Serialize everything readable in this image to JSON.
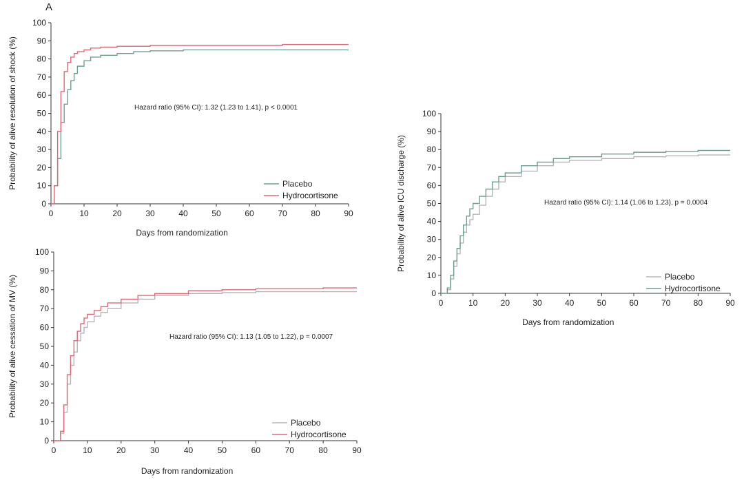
{
  "figure": {
    "panel_letter": "A",
    "colors": {
      "placebo": "#6d9e93",
      "hydrocortisone": "#e06677",
      "axis": "#333333",
      "text": "#222222"
    }
  },
  "chart_data": [
    {
      "id": "shock",
      "type": "line",
      "step": true,
      "title": "",
      "xlabel": "Days from randomization",
      "ylabel": "Probability of alive resolution of shock (%)",
      "xlim": [
        0,
        90
      ],
      "ylim": [
        0,
        100
      ],
      "xticks": [
        0,
        10,
        20,
        30,
        40,
        50,
        60,
        70,
        80,
        90
      ],
      "yticks": [
        0,
        10,
        20,
        30,
        40,
        50,
        60,
        70,
        80,
        90,
        100
      ],
      "grid": false,
      "legend_position": "bottom-right",
      "annotation": "Hazard ratio (95% CI):  1.32  (1.23 to 1.41), p < 0.0001",
      "series": [
        {
          "name": "Placebo",
          "color": "#6d9e93",
          "x": [
            0,
            1,
            2,
            3,
            4,
            5,
            6,
            7,
            8,
            10,
            12,
            15,
            20,
            25,
            30,
            40,
            50,
            60,
            70,
            80,
            90
          ],
          "y": [
            0,
            10,
            25,
            45,
            55,
            63,
            68,
            72,
            76,
            79,
            81,
            82,
            83,
            84,
            84.5,
            85,
            85,
            85,
            85,
            85,
            85
          ]
        },
        {
          "name": "Hydrocortisone",
          "color": "#e06677",
          "x": [
            0,
            1,
            2,
            3,
            4,
            5,
            6,
            7,
            8,
            10,
            12,
            15,
            20,
            25,
            30,
            40,
            50,
            60,
            70,
            80,
            90
          ],
          "y": [
            0,
            10,
            40,
            62,
            73,
            78,
            81,
            83,
            84,
            85,
            86,
            86.5,
            87,
            87,
            87.5,
            87.5,
            87.5,
            87.5,
            88,
            88,
            88
          ]
        }
      ]
    },
    {
      "id": "mv",
      "type": "line",
      "step": true,
      "title": "",
      "xlabel": "Days from randomization",
      "ylabel": "Probability of alive cessation of MV (%)",
      "xlim": [
        0,
        90
      ],
      "ylim": [
        0,
        100
      ],
      "xticks": [
        0,
        10,
        20,
        30,
        40,
        50,
        60,
        70,
        80,
        90
      ],
      "yticks": [
        0,
        10,
        20,
        30,
        40,
        50,
        60,
        70,
        80,
        90,
        100
      ],
      "grid": false,
      "legend_position": "bottom-right",
      "annotation": "Hazard ratio (95% CI):  1.13 (1.05 to 1.22), p = 0.0007",
      "series": [
        {
          "name": "Placebo",
          "color": "#b5b5b5",
          "x": [
            0,
            2,
            3,
            4,
            5,
            6,
            7,
            8,
            9,
            10,
            12,
            14,
            16,
            20,
            25,
            30,
            40,
            50,
            60,
            70,
            80,
            90
          ],
          "y": [
            0,
            4,
            15,
            30,
            40,
            47,
            53,
            57,
            60,
            63,
            66,
            68,
            70,
            73,
            75,
            77,
            78,
            78.5,
            79,
            79,
            79,
            79
          ]
        },
        {
          "name": "Hydrocortisone",
          "color": "#e06677",
          "x": [
            0,
            2,
            3,
            4,
            5,
            6,
            7,
            8,
            9,
            10,
            12,
            14,
            16,
            20,
            25,
            30,
            40,
            50,
            60,
            70,
            80,
            90
          ],
          "y": [
            0,
            5,
            19,
            35,
            45,
            53,
            58,
            62,
            65,
            67,
            69,
            71,
            73,
            75,
            77,
            78,
            79.5,
            80,
            80.5,
            80.5,
            81,
            81
          ]
        }
      ]
    },
    {
      "id": "icu",
      "type": "line",
      "step": true,
      "title": "",
      "xlabel": "Days from randomization",
      "ylabel": "Probability of alive ICU discharge (%)",
      "xlim": [
        0,
        90
      ],
      "ylim": [
        0,
        100
      ],
      "xticks": [
        0,
        10,
        20,
        30,
        40,
        50,
        60,
        70,
        80,
        90
      ],
      "yticks": [
        0,
        10,
        20,
        30,
        40,
        50,
        60,
        70,
        80,
        90,
        100
      ],
      "grid": false,
      "legend_position": "bottom-right",
      "annotation": "Hazard ratio (95% CI):  1.14  (1.06 to 1.23), p = 0.0004",
      "series": [
        {
          "name": "Placebo",
          "color": "#b5b5b5",
          "x": [
            0,
            2,
            3,
            4,
            5,
            6,
            7,
            8,
            9,
            10,
            12,
            14,
            16,
            18,
            20,
            25,
            30,
            35,
            40,
            50,
            60,
            70,
            80,
            90
          ],
          "y": [
            0,
            2,
            8,
            15,
            22,
            28,
            34,
            38,
            41,
            44,
            49,
            54,
            58,
            62,
            65,
            68,
            71,
            73,
            74,
            75,
            76,
            76.5,
            77,
            77
          ]
        },
        {
          "name": "Hydrocortisone",
          "color": "#6d9e93",
          "x": [
            0,
            2,
            3,
            4,
            5,
            6,
            7,
            8,
            9,
            10,
            12,
            14,
            16,
            18,
            20,
            25,
            30,
            35,
            40,
            50,
            60,
            70,
            80,
            90
          ],
          "y": [
            0,
            3,
            10,
            18,
            25,
            32,
            38,
            43,
            47,
            50,
            54,
            58,
            62,
            65,
            67,
            71,
            73,
            75,
            76,
            77.5,
            78.5,
            79,
            79.5,
            79.5
          ]
        }
      ]
    }
  ]
}
